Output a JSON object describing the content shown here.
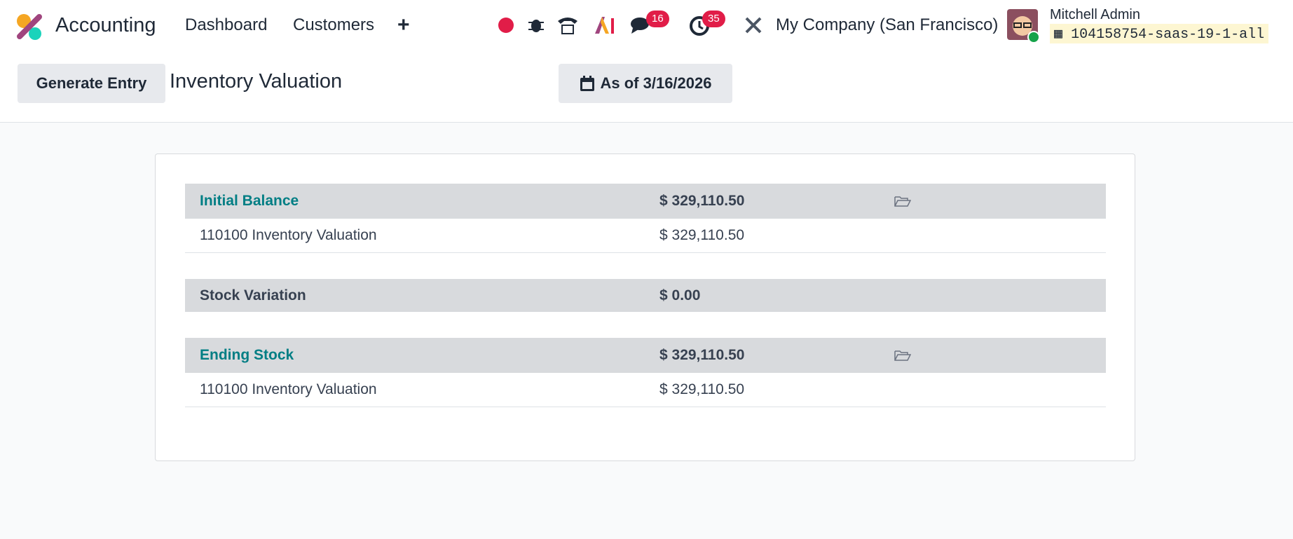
{
  "navbar": {
    "app_name": "Accounting",
    "menus": [
      "Dashboard",
      "Customers"
    ],
    "messages_badge": "16",
    "activities_badge": "35",
    "company": "My Company (San Francisco)",
    "user": "Mitchell Admin",
    "database": "104158754-saas-19-1-all"
  },
  "control_panel": {
    "button": "Generate Entry",
    "title": "Inventory Valuation",
    "date_filter": "As of 3/16/2026"
  },
  "report": {
    "sections": [
      {
        "title": "Initial Balance",
        "amount": "$ 329,110.50",
        "lines": [
          {
            "label": "110100 Inventory Valuation",
            "amount": "$ 329,110.50"
          }
        ]
      },
      {
        "title": "Stock Variation",
        "amount": "$ 0.00",
        "lines": []
      },
      {
        "title": "Ending Stock",
        "amount": "$ 329,110.50",
        "lines": [
          {
            "label": "110100 Inventory Valuation",
            "amount": "$ 329,110.50"
          }
        ]
      }
    ]
  }
}
